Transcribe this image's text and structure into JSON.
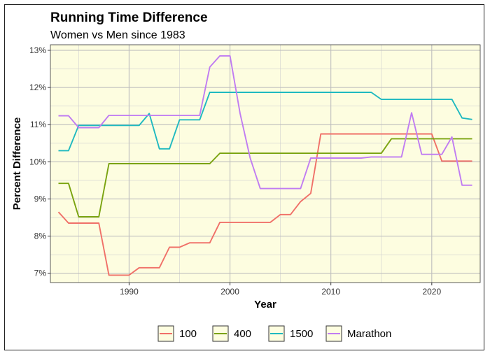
{
  "chart_data": {
    "type": "line",
    "title": "Running Time Difference",
    "subtitle": "Women vs Men since 1983",
    "xlabel": "Year",
    "ylabel": "Percent Difference",
    "xlim": [
      1982.2,
      2024.8
    ],
    "ylim": [
      6.75,
      13.15
    ],
    "x_ticks": [
      1990,
      2000,
      2010,
      2020
    ],
    "x_tick_labels": [
      "1990",
      "2000",
      "2010",
      "2020"
    ],
    "y_ticks": [
      7,
      8,
      9,
      10,
      11,
      12,
      13
    ],
    "y_tick_labels": [
      "7%",
      "8%",
      "9%",
      "10%",
      "11%",
      "12%",
      "13%"
    ],
    "grid": true,
    "legend_position": "bottom",
    "panel_background": "#fdfde0",
    "series": [
      {
        "name": "100",
        "color": "#f07068",
        "points": [
          [
            1983,
            8.65
          ],
          [
            1984,
            8.35
          ],
          [
            1985,
            8.35
          ],
          [
            1986,
            8.35
          ],
          [
            1987,
            8.35
          ],
          [
            1988,
            6.95
          ],
          [
            1989,
            6.95
          ],
          [
            1990,
            6.95
          ],
          [
            1991,
            7.15
          ],
          [
            1992,
            7.15
          ],
          [
            1993,
            7.15
          ],
          [
            1994,
            7.7
          ],
          [
            1995,
            7.7
          ],
          [
            1996,
            7.82
          ],
          [
            1997,
            7.82
          ],
          [
            1998,
            7.82
          ],
          [
            1999,
            8.37
          ],
          [
            2000,
            8.37
          ],
          [
            2001,
            8.37
          ],
          [
            2002,
            8.37
          ],
          [
            2003,
            8.37
          ],
          [
            2004,
            8.37
          ],
          [
            2005,
            8.58
          ],
          [
            2006,
            8.58
          ],
          [
            2007,
            8.93
          ],
          [
            2008,
            9.15
          ],
          [
            2009,
            10.75
          ],
          [
            2010,
            10.75
          ],
          [
            2011,
            10.75
          ],
          [
            2012,
            10.75
          ],
          [
            2013,
            10.75
          ],
          [
            2014,
            10.75
          ],
          [
            2015,
            10.75
          ],
          [
            2016,
            10.75
          ],
          [
            2017,
            10.75
          ],
          [
            2018,
            10.75
          ],
          [
            2019,
            10.75
          ],
          [
            2020,
            10.75
          ],
          [
            2021,
            10.02
          ],
          [
            2022,
            10.02
          ],
          [
            2023,
            10.02
          ],
          [
            2024,
            10.02
          ]
        ]
      },
      {
        "name": "400",
        "color": "#7aa30f",
        "points": [
          [
            1983,
            9.42
          ],
          [
            1984,
            9.42
          ],
          [
            1985,
            8.52
          ],
          [
            1986,
            8.52
          ],
          [
            1987,
            8.52
          ],
          [
            1988,
            9.95
          ],
          [
            1989,
            9.95
          ],
          [
            1990,
            9.95
          ],
          [
            1991,
            9.95
          ],
          [
            1992,
            9.95
          ],
          [
            1993,
            9.95
          ],
          [
            1994,
            9.95
          ],
          [
            1995,
            9.95
          ],
          [
            1996,
            9.95
          ],
          [
            1997,
            9.95
          ],
          [
            1998,
            9.95
          ],
          [
            1999,
            10.23
          ],
          [
            2000,
            10.23
          ],
          [
            2001,
            10.23
          ],
          [
            2002,
            10.23
          ],
          [
            2003,
            10.23
          ],
          [
            2004,
            10.23
          ],
          [
            2005,
            10.23
          ],
          [
            2006,
            10.23
          ],
          [
            2007,
            10.23
          ],
          [
            2008,
            10.23
          ],
          [
            2009,
            10.23
          ],
          [
            2010,
            10.23
          ],
          [
            2011,
            10.23
          ],
          [
            2012,
            10.23
          ],
          [
            2013,
            10.23
          ],
          [
            2014,
            10.23
          ],
          [
            2015,
            10.23
          ],
          [
            2016,
            10.62
          ],
          [
            2017,
            10.62
          ],
          [
            2018,
            10.62
          ],
          [
            2019,
            10.62
          ],
          [
            2020,
            10.62
          ],
          [
            2021,
            10.62
          ],
          [
            2022,
            10.62
          ],
          [
            2023,
            10.62
          ],
          [
            2024,
            10.62
          ]
        ]
      },
      {
        "name": "1500",
        "color": "#1fb9c0",
        "points": [
          [
            1983,
            10.3
          ],
          [
            1984,
            10.3
          ],
          [
            1985,
            10.98
          ],
          [
            1986,
            10.98
          ],
          [
            1987,
            10.98
          ],
          [
            1988,
            10.98
          ],
          [
            1989,
            10.98
          ],
          [
            1990,
            10.98
          ],
          [
            1991,
            10.98
          ],
          [
            1992,
            11.3
          ],
          [
            1993,
            10.35
          ],
          [
            1994,
            10.35
          ],
          [
            1995,
            11.13
          ],
          [
            1996,
            11.13
          ],
          [
            1997,
            11.13
          ],
          [
            1998,
            11.87
          ],
          [
            1999,
            11.87
          ],
          [
            2000,
            11.87
          ],
          [
            2001,
            11.87
          ],
          [
            2002,
            11.87
          ],
          [
            2003,
            11.87
          ],
          [
            2004,
            11.87
          ],
          [
            2005,
            11.87
          ],
          [
            2006,
            11.87
          ],
          [
            2007,
            11.87
          ],
          [
            2008,
            11.87
          ],
          [
            2009,
            11.87
          ],
          [
            2010,
            11.87
          ],
          [
            2011,
            11.87
          ],
          [
            2012,
            11.87
          ],
          [
            2013,
            11.87
          ],
          [
            2014,
            11.87
          ],
          [
            2015,
            11.68
          ],
          [
            2016,
            11.68
          ],
          [
            2017,
            11.68
          ],
          [
            2018,
            11.68
          ],
          [
            2019,
            11.68
          ],
          [
            2020,
            11.68
          ],
          [
            2021,
            11.68
          ],
          [
            2022,
            11.68
          ],
          [
            2023,
            11.18
          ],
          [
            2024,
            11.14
          ]
        ]
      },
      {
        "name": "Marathon",
        "color": "#c07cf2",
        "points": [
          [
            1983,
            11.24
          ],
          [
            1984,
            11.24
          ],
          [
            1985,
            10.92
          ],
          [
            1986,
            10.92
          ],
          [
            1987,
            10.92
          ],
          [
            1988,
            11.25
          ],
          [
            1989,
            11.25
          ],
          [
            1990,
            11.25
          ],
          [
            1991,
            11.25
          ],
          [
            1992,
            11.25
          ],
          [
            1993,
            11.25
          ],
          [
            1994,
            11.25
          ],
          [
            1995,
            11.25
          ],
          [
            1996,
            11.25
          ],
          [
            1997,
            11.25
          ],
          [
            1998,
            12.55
          ],
          [
            1999,
            12.85
          ],
          [
            2000,
            12.85
          ],
          [
            2001,
            11.3
          ],
          [
            2002,
            10.1
          ],
          [
            2003,
            9.28
          ],
          [
            2004,
            9.28
          ],
          [
            2005,
            9.28
          ],
          [
            2006,
            9.28
          ],
          [
            2007,
            9.28
          ],
          [
            2008,
            10.1
          ],
          [
            2009,
            10.1
          ],
          [
            2010,
            10.1
          ],
          [
            2011,
            10.1
          ],
          [
            2012,
            10.1
          ],
          [
            2013,
            10.1
          ],
          [
            2014,
            10.13
          ],
          [
            2015,
            10.13
          ],
          [
            2016,
            10.13
          ],
          [
            2017,
            10.13
          ],
          [
            2018,
            11.32
          ],
          [
            2019,
            10.2
          ],
          [
            2020,
            10.2
          ],
          [
            2021,
            10.2
          ],
          [
            2022,
            10.67
          ],
          [
            2023,
            9.37
          ],
          [
            2024,
            9.37
          ]
        ]
      }
    ]
  }
}
